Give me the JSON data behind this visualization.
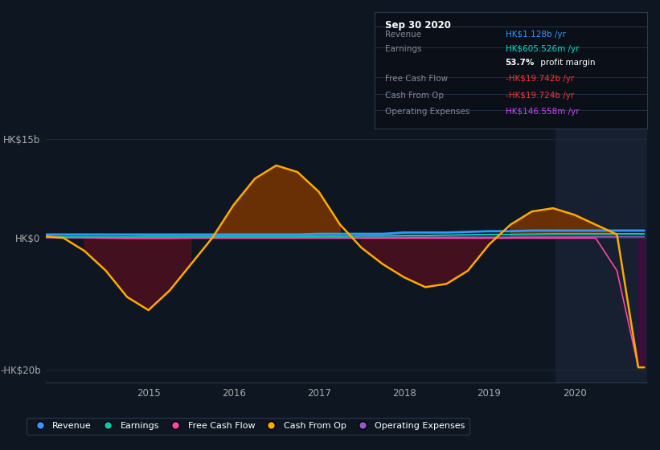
{
  "bg_color": "#0e1621",
  "plot_bg_color": "#0e1621",
  "highlight_bg_color": "#162030",
  "ylim": [
    -22000000000.0,
    17000000000.0
  ],
  "y_ticks": [
    15000000000.0,
    0,
    -20000000000.0
  ],
  "y_tick_labels": [
    "HK$15b",
    "HK$0",
    "-HK$20b"
  ],
  "x_ticks": [
    2015,
    2016,
    2017,
    2018,
    2019,
    2020
  ],
  "x_tick_labels": [
    "2015",
    "2016",
    "2017",
    "2018",
    "2019",
    "2020"
  ],
  "xlim_start": 2013.8,
  "xlim_end": 2020.85,
  "highlight_x_start": 2019.78,
  "highlight_x_end": 2020.85,
  "infobox": {
    "title": "Sep 30 2020",
    "rows": [
      {
        "label": "Revenue",
        "value": "HK$1.128b",
        "suffix": " /yr",
        "value_color": "#3399ff"
      },
      {
        "label": "Earnings",
        "value": "HK$605.526m",
        "suffix": " /yr",
        "value_color": "#00e5cc"
      },
      {
        "label": "",
        "bold_part": "53.7%",
        "plain_part": " profit margin",
        "value_color": "#ffffff"
      },
      {
        "label": "Free Cash Flow",
        "value": "-HK$19.742b",
        "suffix": " /yr",
        "value_color": "#ff3333"
      },
      {
        "label": "Cash From Op",
        "value": "-HK$19.724b",
        "suffix": " /yr",
        "value_color": "#ff3333"
      },
      {
        "label": "Operating Expenses",
        "value": "HK$146.558m",
        "suffix": " /yr",
        "value_color": "#cc44ff"
      }
    ]
  },
  "legend_items": [
    {
      "label": "Revenue",
      "color": "#3399ff"
    },
    {
      "label": "Earnings",
      "color": "#00ccaa"
    },
    {
      "label": "Free Cash Flow",
      "color": "#ff44aa"
    },
    {
      "label": "Cash From Op",
      "color": "#ffaa00"
    },
    {
      "label": "Operating Expenses",
      "color": "#9955cc"
    }
  ],
  "line_colors": {
    "Revenue": "#3399ff",
    "Earnings": "#00ccaa",
    "Free Cash Flow": "#ff44aa",
    "Cash From Op": "#ffaa00",
    "Operating Expenses": "#9955cc"
  },
  "series": {
    "time": [
      2013.8,
      2014.0,
      2014.25,
      2014.5,
      2014.75,
      2015.0,
      2015.25,
      2015.5,
      2015.75,
      2016.0,
      2016.25,
      2016.5,
      2016.75,
      2017.0,
      2017.25,
      2017.5,
      2017.75,
      2018.0,
      2018.25,
      2018.5,
      2018.75,
      2019.0,
      2019.25,
      2019.5,
      2019.75,
      2020.0,
      2020.25,
      2020.5,
      2020.75,
      2020.82
    ],
    "revenue": [
      500000000.0,
      500000000.0,
      500000000.0,
      500000000.0,
      500000000.0,
      500000000.0,
      500000000.0,
      500000000.0,
      500000000.0,
      500000000.0,
      500000000.0,
      500000000.0,
      500000000.0,
      600000000.0,
      600000000.0,
      600000000.0,
      600000000.0,
      800000000.0,
      800000000.0,
      800000000.0,
      900000000.0,
      1000000000.0,
      1000000000.0,
      1100000000.0,
      1100000000.0,
      1100000000.0,
      1100000000.0,
      1100000000.0,
      1100000000.0,
      1100000000.0
    ],
    "earnings": [
      150000000.0,
      150000000.0,
      150000000.0,
      150000000.0,
      150000000.0,
      200000000.0,
      200000000.0,
      200000000.0,
      200000000.0,
      200000000.0,
      200000000.0,
      200000000.0,
      200000000.0,
      250000000.0,
      250000000.0,
      300000000.0,
      300000000.0,
      350000000.0,
      350000000.0,
      400000000.0,
      450000000.0,
      500000000.0,
      500000000.0,
      550000000.0,
      600000000.0,
      600000000.0,
      600000000.0,
      600000000.0,
      600000000.0,
      600000000.0
    ],
    "free_cash_flow": [
      50000000.0,
      50000000.0,
      0.0,
      -50000000.0,
      -100000000.0,
      -100000000.0,
      -100000000.0,
      -50000000.0,
      -50000000.0,
      -50000000.0,
      -50000000.0,
      -50000000.0,
      -50000000.0,
      -50000000.0,
      -50000000.0,
      -50000000.0,
      -50000000.0,
      -50000000.0,
      -50000000.0,
      -50000000.0,
      -50000000.0,
      -50000000.0,
      -50000000.0,
      -50000000.0,
      -50000000.0,
      -50000000.0,
      -50000000.0,
      -5000000000.0,
      -19700000000.0,
      -19700000000.0
    ],
    "cash_from_op": [
      200000000.0,
      0.0,
      -2000000000.0,
      -5000000000.0,
      -9000000000.0,
      -11000000000.0,
      -8000000000.0,
      -4000000000.0,
      0.0,
      5000000000.0,
      9000000000.0,
      11000000000.0,
      10000000000.0,
      7000000000.0,
      2000000000.0,
      -1500000000.0,
      -4000000000.0,
      -6000000000.0,
      -7500000000.0,
      -7000000000.0,
      -5000000000.0,
      -1000000000.0,
      2000000000.0,
      4000000000.0,
      4500000000.0,
      3500000000.0,
      2000000000.0,
      500000000.0,
      -19700000000.0,
      -19700000000.0
    ],
    "operating_expenses": [
      50000000.0,
      50000000.0,
      50000000.0,
      50000000.0,
      50000000.0,
      50000000.0,
      50000000.0,
      50000000.0,
      50000000.0,
      50000000.0,
      50000000.0,
      50000000.0,
      50000000.0,
      80000000.0,
      100000000.0,
      100000000.0,
      100000000.0,
      100000000.0,
      100000000.0,
      100000000.0,
      100000000.0,
      100000000.0,
      100000000.0,
      120000000.0,
      120000000.0,
      120000000.0,
      150000000.0,
      150000000.0,
      150000000.0,
      150000000.0
    ]
  }
}
